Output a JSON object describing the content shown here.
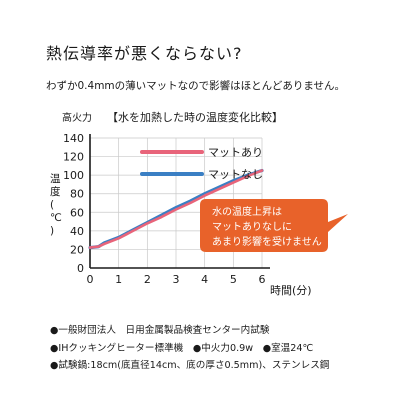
{
  "page": {
    "title": "熱伝導率が悪くならない?",
    "subtitle": "わずか0.4mmの薄いマットなので影響はほとんどありません。"
  },
  "notes": [
    "●一般財団法人　日用金属製品検査センター内試験",
    "●IHクッキングヒーター標準機　●中火力0.9w　●室温24℃",
    "●試験鍋:18cm(底直径14cm、底の厚さ0.5mm)、ステンレス鋼"
  ],
  "callout": {
    "lines": [
      "水の温度上昇は",
      "マットありなしに",
      "あまり影響を受けません"
    ],
    "color": "#e8622a"
  },
  "chart_data": {
    "type": "line",
    "title": "【水を加熱した時の温度変化比較】",
    "y_heading": "高火力",
    "ylabel": "温度(℃)",
    "xlabel": "時間(分)",
    "xlim": [
      0,
      6
    ],
    "ylim": [
      0,
      140
    ],
    "x_ticks": [
      0,
      1,
      2,
      3,
      4,
      5,
      6
    ],
    "y_ticks": [
      0,
      20,
      40,
      60,
      80,
      100,
      120,
      140
    ],
    "grid": true,
    "legend_position": "top-center",
    "series": [
      {
        "name": "マットあり",
        "color": "#e8647a",
        "x": [
          0,
          0.3,
          0.5,
          1,
          1.5,
          2,
          2.5,
          3,
          3.5,
          4,
          4.5,
          5,
          5.5,
          6
        ],
        "y": [
          22,
          23,
          26,
          32,
          40,
          48,
          55,
          63,
          70,
          78,
          85,
          92,
          99,
          105
        ]
      },
      {
        "name": "マットなし",
        "color": "#3a7fc4",
        "x": [
          0,
          0.3,
          0.5,
          1,
          1.5,
          2,
          2.5,
          3,
          3.5,
          4,
          4.5,
          5,
          5.5,
          6
        ],
        "y": [
          22,
          23,
          27,
          33,
          41,
          49,
          57,
          65,
          72,
          80,
          87,
          94,
          100,
          105
        ]
      }
    ]
  }
}
